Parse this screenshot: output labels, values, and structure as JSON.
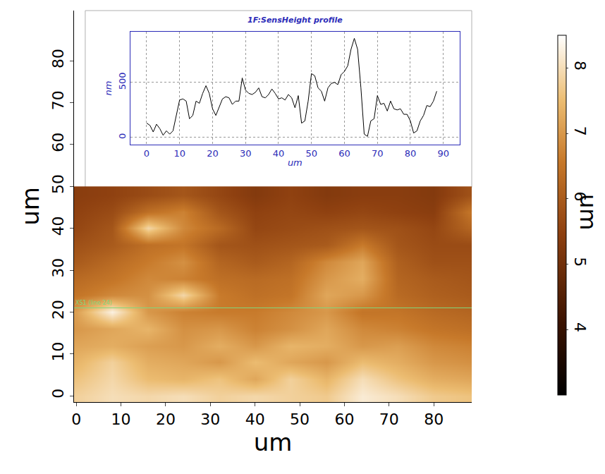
{
  "chart_data": [
    {
      "type": "heatmap",
      "x_label": "um",
      "y_label": "um",
      "x": [
        0,
        8,
        16,
        24,
        32,
        40,
        48,
        56,
        64,
        72,
        80,
        88
      ],
      "y": [
        0,
        4,
        8,
        12,
        16,
        20,
        24,
        28,
        32,
        36,
        40,
        44,
        48
      ],
      "z": [
        [
          7.8,
          8.0,
          7.9,
          8.0,
          7.8,
          7.9,
          7.8,
          7.7,
          8.2,
          8.0,
          7.7,
          7.6
        ],
        [
          7.6,
          7.9,
          7.5,
          7.4,
          7.6,
          7.2,
          7.8,
          7.4,
          8.0,
          7.6,
          7.3,
          7.2
        ],
        [
          7.4,
          7.8,
          7.3,
          7.2,
          7.0,
          7.5,
          7.2,
          7.0,
          7.5,
          7.3,
          7.0,
          6.9
        ],
        [
          7.2,
          7.3,
          7.1,
          7.0,
          7.3,
          7.0,
          7.4,
          7.3,
          7.0,
          7.1,
          6.8,
          6.7
        ],
        [
          7.0,
          7.2,
          7.4,
          6.9,
          7.0,
          6.7,
          6.9,
          7.2,
          6.8,
          6.7,
          6.5,
          6.4
        ],
        [
          7.1,
          8.3,
          7.0,
          6.7,
          6.6,
          6.6,
          6.8,
          7.0,
          6.5,
          6.5,
          6.3,
          6.2
        ],
        [
          6.5,
          6.8,
          6.9,
          7.9,
          6.6,
          6.4,
          6.5,
          7.2,
          7.0,
          6.3,
          6.1,
          6.0
        ],
        [
          6.3,
          6.5,
          6.8,
          6.7,
          6.4,
          6.3,
          6.4,
          7.0,
          7.3,
          6.2,
          6.0,
          5.9
        ],
        [
          6.0,
          6.3,
          6.6,
          6.9,
          6.2,
          6.0,
          6.2,
          6.8,
          7.2,
          6.1,
          5.8,
          5.8
        ],
        [
          5.8,
          6.0,
          6.4,
          6.5,
          5.9,
          5.8,
          5.9,
          6.0,
          6.6,
          5.9,
          5.7,
          5.7
        ],
        [
          5.6,
          5.9,
          7.9,
          6.8,
          6.3,
          5.6,
          5.7,
          5.8,
          5.9,
          5.8,
          5.6,
          6.2
        ],
        [
          5.5,
          5.7,
          6.4,
          6.7,
          5.9,
          5.5,
          5.6,
          5.5,
          5.6,
          5.5,
          5.4,
          6.5
        ],
        [
          5.4,
          5.5,
          5.7,
          5.9,
          5.6,
          5.3,
          5.5,
          5.3,
          5.4,
          5.4,
          5.3,
          5.8
        ]
      ],
      "xlim": [
        -0.5,
        88.5
      ],
      "ylim": [
        -1.5,
        92
      ],
      "xticks": [
        0,
        10,
        20,
        30,
        40,
        50,
        60,
        70,
        80
      ],
      "yticks": [
        0,
        10,
        20,
        30,
        40,
        50,
        60,
        70,
        80
      ],
      "colorbar": {
        "title": "um",
        "range": [
          3.0,
          8.5
        ],
        "ticks": [
          4,
          5,
          6,
          7,
          8
        ]
      },
      "annotations": [
        {
          "text": "XS1 (line 24)",
          "y": 21,
          "color": "#7fd97f"
        }
      ]
    },
    {
      "type": "line",
      "title": "1F:SensHeight profile",
      "x_label": "um",
      "y_label": "nm",
      "color": "#000000",
      "x": [
        0,
        1,
        2,
        3,
        4,
        5,
        6,
        7,
        8,
        9,
        10,
        11,
        12,
        13,
        14,
        15,
        16,
        17,
        18,
        19,
        20,
        21,
        22,
        23,
        24,
        25,
        26,
        27,
        28,
        29,
        30,
        31,
        32,
        33,
        34,
        35,
        36,
        37,
        38,
        39,
        40,
        41,
        42,
        43,
        44,
        45,
        46,
        47,
        48,
        49,
        50,
        51,
        52,
        53,
        54,
        55,
        56,
        57,
        58,
        59,
        60,
        61,
        62,
        63,
        64,
        65,
        66,
        67,
        68,
        69,
        70,
        71,
        72,
        73,
        74,
        75,
        76,
        77,
        78,
        79,
        80,
        81,
        82,
        83,
        84,
        85,
        86,
        87,
        88
      ],
      "values": [
        130,
        110,
        50,
        120,
        80,
        20,
        60,
        30,
        60,
        200,
        340,
        350,
        330,
        170,
        200,
        330,
        310,
        400,
        470,
        400,
        260,
        200,
        280,
        350,
        370,
        360,
        300,
        330,
        330,
        540,
        430,
        400,
        390,
        410,
        450,
        370,
        360,
        390,
        440,
        400,
        350,
        360,
        340,
        390,
        360,
        270,
        380,
        130,
        150,
        330,
        580,
        560,
        450,
        420,
        330,
        450,
        490,
        500,
        480,
        570,
        600,
        650,
        800,
        900,
        800,
        450,
        30,
        10,
        150,
        170,
        380,
        300,
        310,
        240,
        330,
        260,
        250,
        260,
        210,
        210,
        150,
        40,
        60,
        150,
        200,
        290,
        280,
        330,
        420
      ],
      "xlim": [
        -5,
        95
      ],
      "ylim": [
        -65,
        960
      ],
      "xticks": [
        0,
        10,
        20,
        30,
        40,
        50,
        60,
        70,
        80,
        90
      ],
      "yticks": [
        0,
        500
      ],
      "grid": true
    }
  ]
}
